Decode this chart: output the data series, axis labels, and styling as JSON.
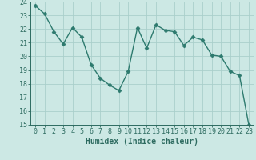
{
  "x": [
    0,
    1,
    2,
    3,
    4,
    5,
    6,
    7,
    8,
    9,
    10,
    11,
    12,
    13,
    14,
    15,
    16,
    17,
    18,
    19,
    20,
    21,
    22,
    23
  ],
  "y": [
    23.7,
    23.1,
    21.8,
    20.9,
    22.1,
    21.4,
    19.4,
    18.4,
    17.9,
    17.5,
    18.9,
    22.1,
    20.6,
    22.3,
    21.9,
    21.8,
    20.8,
    21.4,
    21.2,
    20.1,
    20.0,
    18.9,
    18.6,
    15.0
  ],
  "line_color": "#2d7a6e",
  "marker": "D",
  "marker_size": 2.5,
  "bg_color": "#cce8e4",
  "grid_color": "#aacfcb",
  "tick_color": "#2d6b60",
  "label_color": "#2d6b60",
  "xlabel": "Humidex (Indice chaleur)",
  "ylim": [
    15,
    24
  ],
  "yticks": [
    15,
    16,
    17,
    18,
    19,
    20,
    21,
    22,
    23,
    24
  ],
  "xticks": [
    0,
    1,
    2,
    3,
    4,
    5,
    6,
    7,
    8,
    9,
    10,
    11,
    12,
    13,
    14,
    15,
    16,
    17,
    18,
    19,
    20,
    21,
    22,
    23
  ],
  "font_size": 6.0,
  "xlabel_fontsize": 7.0
}
